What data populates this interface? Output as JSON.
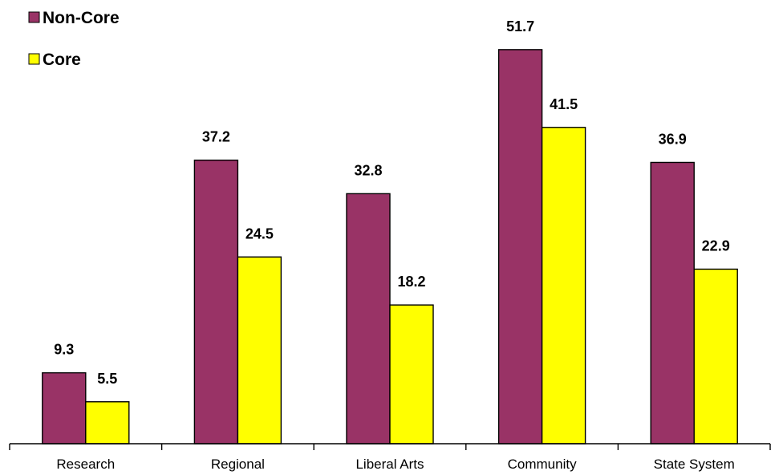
{
  "chart_data": {
    "type": "bar",
    "categories": [
      "Research",
      "Regional",
      "Liberal Arts",
      "Community",
      "State System"
    ],
    "series": [
      {
        "name": "Non-Core",
        "values": [
          9.3,
          37.2,
          32.8,
          51.7,
          36.9
        ],
        "color": "#993366"
      },
      {
        "name": "Core",
        "values": [
          5.5,
          24.5,
          18.2,
          41.5,
          22.9
        ],
        "color": "#ffff00"
      }
    ],
    "title": "",
    "xlabel": "",
    "ylabel": "",
    "ylim": [
      0,
      60
    ],
    "grid": false,
    "legend": "top-left",
    "data_labels": true
  }
}
